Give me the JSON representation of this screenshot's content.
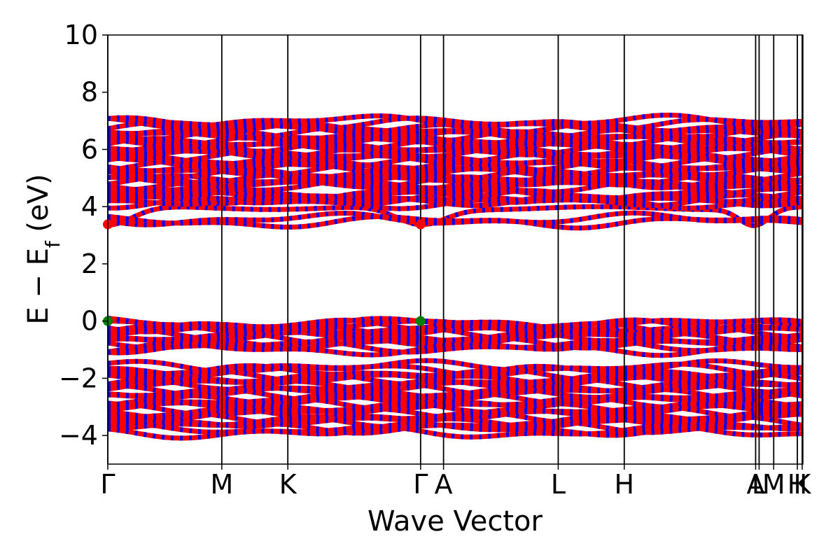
{
  "chart_data": {
    "type": "line",
    "title": "",
    "xlabel": "Wave Vector",
    "ylabel": "E − E_f (eV)",
    "ylabel_parts": {
      "main": "E − E",
      "sub": "f",
      "unit": " (eV)"
    },
    "ylim": [
      -5,
      10
    ],
    "yticks": [
      -4,
      -2,
      0,
      2,
      4,
      6,
      8,
      10
    ],
    "ytick_labels": [
      "−4",
      "−2",
      "0",
      "2",
      "4",
      "6",
      "8",
      "10"
    ],
    "x_range": [
      0,
      1
    ],
    "kpoints": [
      {
        "label": "Γ",
        "x": 0.0
      },
      {
        "label": "M",
        "x": 0.164
      },
      {
        "label": "K",
        "x": 0.259
      },
      {
        "label": "Γ",
        "x": 0.45
      },
      {
        "label": "A",
        "x": 0.483
      },
      {
        "label": "L",
        "x": 0.648
      },
      {
        "label": "H",
        "x": 0.743
      },
      {
        "label": "A",
        "x": 0.932
      },
      {
        "label": "L",
        "x": 0.937
      },
      {
        "label": "M",
        "x": 0.958
      },
      {
        "label": "H",
        "x": 0.992
      },
      {
        "label": "K",
        "x": 0.999
      }
    ],
    "series": [
      {
        "color": "#ff0000",
        "dash_color": "#0000ff"
      }
    ],
    "bands": {
      "conduction": [
        3.38,
        4.15,
        4.25,
        4.7,
        4.9,
        5.2,
        5.45,
        5.75,
        6.0,
        6.25,
        6.5,
        6.8
      ],
      "valence": [
        0.0,
        -0.25,
        -0.55,
        -0.8,
        -1.6,
        -1.9,
        -2.2,
        -2.5,
        -2.8,
        -3.1,
        -3.4,
        -3.7
      ]
    },
    "markers": [
      {
        "x": 0.0,
        "y": 3.38,
        "color": "#ff0000"
      },
      {
        "x": 0.45,
        "y": 3.38,
        "color": "#ff0000"
      },
      {
        "x": 0.0,
        "y": 0.0,
        "color": "#008000"
      },
      {
        "x": 0.45,
        "y": 0.0,
        "color": "#008000"
      }
    ],
    "grid": false,
    "legend": "none"
  }
}
